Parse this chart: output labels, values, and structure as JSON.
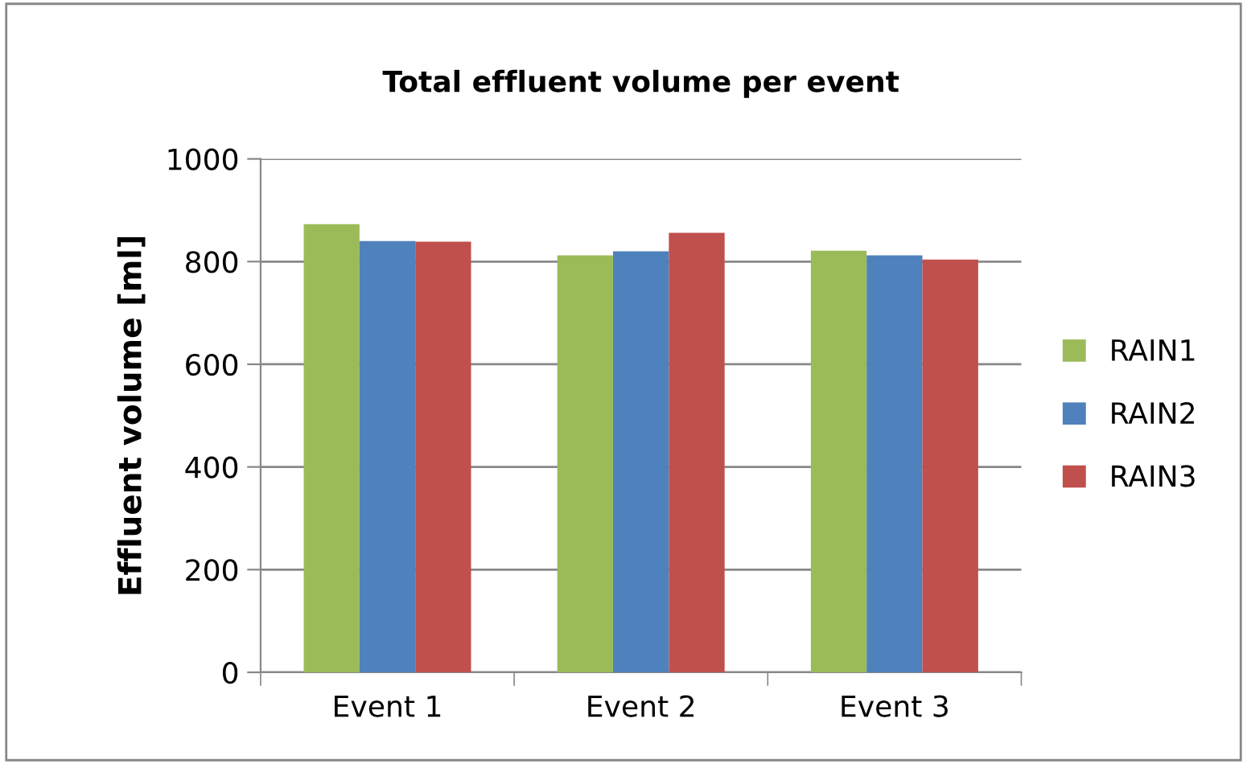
{
  "chart_data": {
    "type": "bar",
    "title": "Total effluent volume per event",
    "ylabel": "Effluent volume [ml]",
    "categories": [
      "Event 1",
      "Event 2",
      "Event 3"
    ],
    "series": [
      {
        "name": "RAIN1",
        "color": "#9bbb59",
        "values": [
          873,
          812,
          821
        ]
      },
      {
        "name": "RAIN2",
        "color": "#4f81bd",
        "values": [
          840,
          820,
          812
        ]
      },
      {
        "name": "RAIN3",
        "color": "#c0504d",
        "values": [
          839,
          856,
          804
        ]
      }
    ],
    "ylim": [
      0,
      1000
    ],
    "yticks": [
      0,
      200,
      400,
      600,
      800,
      1000
    ],
    "grid": "y",
    "legend": "right"
  }
}
